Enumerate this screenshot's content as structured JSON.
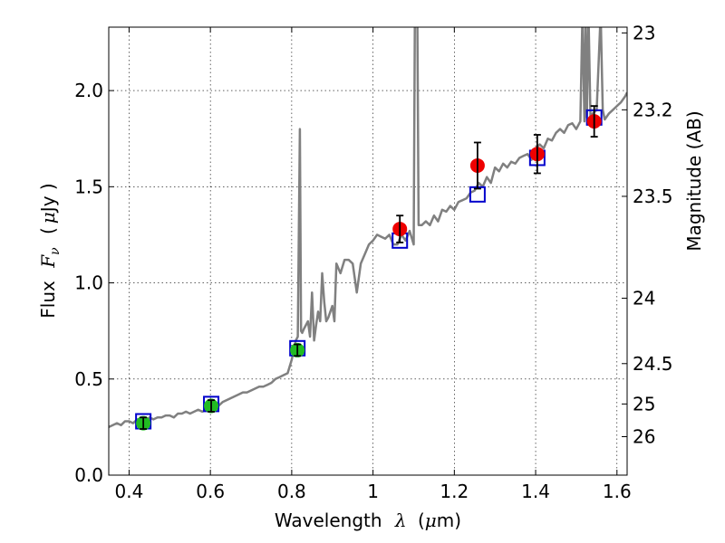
{
  "chart_data": {
    "type": "scatter",
    "xlabel": {
      "text": "Wavelength",
      "symbol": "λ",
      "unit_open": "(",
      "unit_mu": "μ",
      "unit_rest": "m)"
    },
    "ylabel": {
      "text": "Flux",
      "symbol": "F",
      "subscript": "ν",
      "unit_open": "(",
      "unit_mu": "μ",
      "unit_rest": "Jy )"
    },
    "y2label": "Magnitude (AB)",
    "xlim": [
      0.35,
      1.625
    ],
    "ylim": [
      0.0,
      2.33
    ],
    "grid": true,
    "xticks": [
      {
        "value": 0.4,
        "label": "0.4"
      },
      {
        "value": 0.6,
        "label": "0.6"
      },
      {
        "value": 0.8,
        "label": "0.8"
      },
      {
        "value": 1.0,
        "label": "1"
      },
      {
        "value": 1.2,
        "label": "1.2"
      },
      {
        "value": 1.4,
        "label": "1.4"
      },
      {
        "value": 1.6,
        "label": "1.6"
      }
    ],
    "yticks": [
      {
        "value": 0.0,
        "label": "0.0"
      },
      {
        "value": 0.5,
        "label": "0.5"
      },
      {
        "value": 1.0,
        "label": "1.0"
      },
      {
        "value": 1.5,
        "label": "1.5"
      },
      {
        "value": 2.0,
        "label": "2.0"
      }
    ],
    "y2ticks": [
      {
        "flux": 0.2,
        "label": "26"
      },
      {
        "flux": 0.37,
        "label": "25"
      },
      {
        "flux": 0.58,
        "label": "24.5"
      },
      {
        "flux": 0.92,
        "label": "24"
      },
      {
        "flux": 1.45,
        "label": "23.5"
      },
      {
        "flux": 1.9,
        "label": "23.2"
      },
      {
        "flux": 2.3,
        "label": "23"
      }
    ],
    "series": [
      {
        "type": "line",
        "color": "#808080",
        "x": [
          0.35,
          0.36,
          0.37,
          0.38,
          0.39,
          0.4,
          0.41,
          0.42,
          0.43,
          0.44,
          0.45,
          0.46,
          0.47,
          0.48,
          0.49,
          0.5,
          0.51,
          0.52,
          0.53,
          0.54,
          0.55,
          0.56,
          0.57,
          0.58,
          0.59,
          0.6,
          0.61,
          0.62,
          0.63,
          0.64,
          0.65,
          0.66,
          0.67,
          0.68,
          0.69,
          0.7,
          0.71,
          0.72,
          0.73,
          0.74,
          0.75,
          0.76,
          0.77,
          0.78,
          0.79,
          0.8,
          0.81,
          0.815,
          0.82,
          0.823,
          0.826,
          0.83,
          0.84,
          0.845,
          0.85,
          0.855,
          0.86,
          0.865,
          0.87,
          0.875,
          0.88,
          0.885,
          0.89,
          0.9,
          0.905,
          0.91,
          0.92,
          0.93,
          0.94,
          0.95,
          0.96,
          0.97,
          0.98,
          0.99,
          1.0,
          1.01,
          1.02,
          1.03,
          1.04,
          1.05,
          1.06,
          1.07,
          1.08,
          1.09,
          1.1,
          1.103,
          1.106,
          1.109,
          1.112,
          1.12,
          1.13,
          1.14,
          1.15,
          1.16,
          1.17,
          1.18,
          1.19,
          1.2,
          1.21,
          1.22,
          1.23,
          1.24,
          1.25,
          1.26,
          1.27,
          1.28,
          1.29,
          1.3,
          1.31,
          1.32,
          1.33,
          1.34,
          1.35,
          1.36,
          1.37,
          1.38,
          1.39,
          1.4,
          1.41,
          1.42,
          1.43,
          1.44,
          1.45,
          1.46,
          1.47,
          1.48,
          1.49,
          1.5,
          1.51,
          1.515,
          1.52,
          1.523,
          1.526,
          1.53,
          1.535,
          1.54,
          1.55,
          1.56,
          1.565,
          1.57,
          1.58,
          1.59,
          1.6,
          1.61,
          1.62,
          1.625
        ],
        "y": [
          0.25,
          0.26,
          0.27,
          0.26,
          0.28,
          0.28,
          0.27,
          0.29,
          0.29,
          0.28,
          0.3,
          0.29,
          0.3,
          0.3,
          0.31,
          0.31,
          0.3,
          0.32,
          0.32,
          0.33,
          0.32,
          0.33,
          0.34,
          0.33,
          0.34,
          0.35,
          0.36,
          0.36,
          0.38,
          0.39,
          0.4,
          0.41,
          0.42,
          0.43,
          0.43,
          0.44,
          0.45,
          0.46,
          0.46,
          0.47,
          0.48,
          0.5,
          0.51,
          0.52,
          0.53,
          0.6,
          0.7,
          0.72,
          1.8,
          0.75,
          0.74,
          0.76,
          0.8,
          0.72,
          0.95,
          0.7,
          0.78,
          0.85,
          0.8,
          1.05,
          0.9,
          0.8,
          0.82,
          0.88,
          0.8,
          1.1,
          1.05,
          1.12,
          1.12,
          1.1,
          0.95,
          1.1,
          1.15,
          1.2,
          1.22,
          1.25,
          1.24,
          1.23,
          1.25,
          1.2,
          1.2,
          1.25,
          1.22,
          1.27,
          1.2,
          2.4,
          2.4,
          2.4,
          1.3,
          1.3,
          1.32,
          1.3,
          1.35,
          1.32,
          1.38,
          1.37,
          1.4,
          1.38,
          1.42,
          1.43,
          1.44,
          1.47,
          1.48,
          1.52,
          1.5,
          1.55,
          1.52,
          1.6,
          1.58,
          1.62,
          1.6,
          1.63,
          1.62,
          1.65,
          1.66,
          1.67,
          1.64,
          1.7,
          1.72,
          1.7,
          1.75,
          1.74,
          1.78,
          1.8,
          1.78,
          1.82,
          1.83,
          1.8,
          1.84,
          2.4,
          1.84,
          2.4,
          1.86,
          2.4,
          1.85,
          1.88,
          1.9,
          2.4,
          1.9,
          1.85,
          1.88,
          1.9,
          1.92,
          1.94,
          1.97,
          1.99
        ]
      },
      {
        "type": "scatter",
        "marker": "square-open",
        "color": "#0000cc",
        "x": [
          0.435,
          0.602,
          0.814,
          1.066,
          1.257,
          1.404,
          1.544
        ],
        "y": [
          0.28,
          0.37,
          0.66,
          1.22,
          1.46,
          1.65,
          1.86
        ]
      },
      {
        "type": "scatter",
        "marker": "circle",
        "color": "#22bb22",
        "x": [
          0.435,
          0.602,
          0.814
        ],
        "y": [
          0.27,
          0.36,
          0.65
        ],
        "err": [
          0.03,
          0.03,
          0.03
        ]
      },
      {
        "type": "scatter",
        "marker": "circle",
        "color": "#ee0000",
        "x": [
          1.066,
          1.257,
          1.404,
          1.544
        ],
        "y": [
          1.28,
          1.61,
          1.67,
          1.84
        ],
        "err": [
          0.07,
          0.12,
          0.1,
          0.08
        ]
      }
    ]
  }
}
